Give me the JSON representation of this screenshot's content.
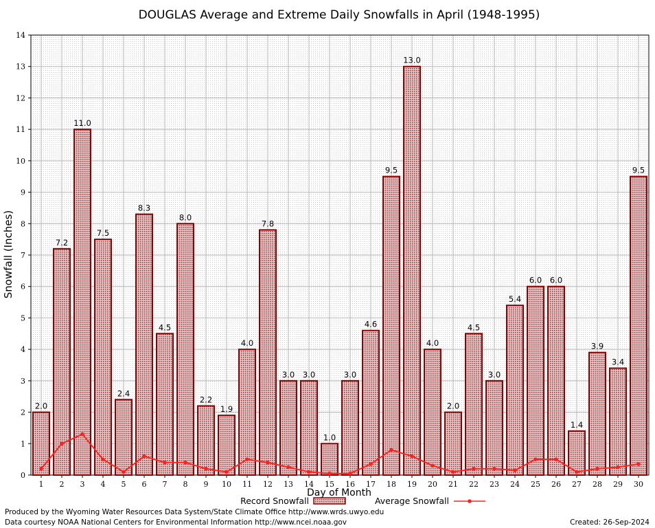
{
  "title": "DOUGLAS Average and Extreme Daily Snowfalls in April (1948-1995)",
  "footer": {
    "line1": "Produced by the Wyoming Water Resources Data System/State Climate Office http://www.wrds.uwyo.edu",
    "line2": "Data courtesy NOAA National Centers for Environmental Information http://www.ncei.noaa.gov",
    "created": "Created:  26-Sep-2024"
  },
  "legend": {
    "record_label": "Record Snowfall",
    "average_label": "Average Snowfall"
  },
  "colors": {
    "bar_fill": "#c9a5a5",
    "bar_stroke": "#8b0000",
    "line": "#ff2020",
    "grid": "#b8b8b8"
  },
  "chart_data": {
    "type": "bar",
    "title": "DOUGLAS Average and Extreme Daily Snowfalls in April (1948-1995)",
    "xlabel": "Day of Month",
    "ylabel": "Snowfall (Inches)",
    "ylim": [
      0,
      14
    ],
    "yticks": [
      0,
      1,
      2,
      3,
      4,
      5,
      6,
      7,
      8,
      9,
      10,
      11,
      12,
      13,
      14
    ],
    "grid": true,
    "legend_position": "bottom",
    "categories": [
      "1",
      "2",
      "3",
      "4",
      "5",
      "6",
      "7",
      "8",
      "9",
      "10",
      "11",
      "12",
      "13",
      "14",
      "15",
      "16",
      "17",
      "18",
      "19",
      "20",
      "21",
      "22",
      "23",
      "24",
      "25",
      "26",
      "27",
      "28",
      "29",
      "30"
    ],
    "series": [
      {
        "name": "Record Snowfall",
        "type": "bar",
        "values": [
          2.0,
          7.2,
          11.0,
          7.5,
          2.4,
          8.3,
          4.5,
          8.0,
          2.2,
          1.9,
          4.0,
          7.8,
          3.0,
          3.0,
          1.0,
          3.0,
          4.6,
          9.5,
          13.0,
          4.0,
          2.0,
          4.5,
          3.0,
          5.4,
          6.0,
          6.0,
          1.4,
          3.9,
          3.4,
          9.5
        ],
        "labels": [
          "2.0",
          "7.2",
          "11.0",
          "7.5",
          "2.4",
          "8.3",
          "4.5",
          "8.0",
          "2.2",
          "1.9",
          "4.0",
          "7.8",
          "3.0",
          "3.0",
          "1.0",
          "3.0",
          "4.6",
          "9.5",
          "13.0",
          "4.0",
          "2.0",
          "4.5",
          "3.0",
          "5.4",
          "6.0",
          "6.0",
          "1.4",
          "3.9",
          "3.4",
          "9.5"
        ]
      },
      {
        "name": "Average Snowfall",
        "type": "line",
        "values": [
          0.2,
          1.0,
          1.3,
          0.5,
          0.1,
          0.6,
          0.4,
          0.4,
          0.2,
          0.1,
          0.5,
          0.4,
          0.25,
          0.1,
          0.05,
          0.05,
          0.35,
          0.8,
          0.6,
          0.3,
          0.1,
          0.2,
          0.2,
          0.15,
          0.5,
          0.5,
          0.1,
          0.2,
          0.25,
          0.35
        ]
      }
    ]
  }
}
